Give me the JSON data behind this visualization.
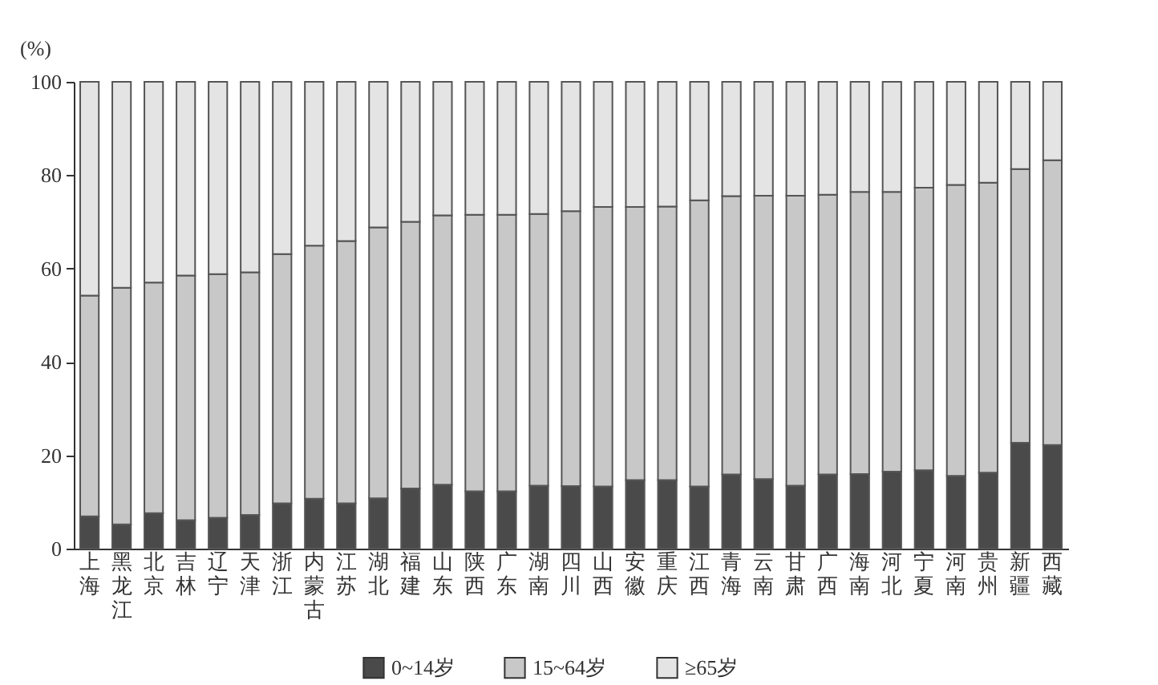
{
  "chart_data": {
    "type": "bar",
    "stacked": true,
    "ylabel": "(%)",
    "legend": "bottom",
    "grid": false,
    "categories": [
      "上海",
      "黑龙江",
      "北京",
      "吉林",
      "辽宁",
      "天津",
      "浙江",
      "内蒙古",
      "江苏",
      "湖北",
      "福建",
      "山东",
      "陕西",
      "广东",
      "湖南",
      "四川",
      "山西",
      "安徽",
      "重庆",
      "江西",
      "青海",
      "云南",
      "甘肃",
      "广西",
      "海南",
      "河北",
      "宁夏",
      "河南",
      "贵州",
      "新疆",
      "西藏"
    ],
    "ylim": [
      0,
      100
    ],
    "yticks": [
      0,
      20,
      40,
      60,
      80,
      100
    ],
    "series": [
      {
        "name": "0~14岁",
        "color": "#4a4a4a",
        "values": [
          6.9,
          5.2,
          7.6,
          6.1,
          6.6,
          7.2,
          9.7,
          10.7,
          9.7,
          10.8,
          12.9,
          13.7,
          12.3,
          12.3,
          13.5,
          13.4,
          13.3,
          14.7,
          14.7,
          13.3,
          15.9,
          14.9,
          13.5,
          15.9,
          16.0,
          16.5,
          16.8,
          15.6,
          16.3,
          22.7,
          22.2
        ]
      },
      {
        "name": "15~64岁",
        "color": "#c8c8c8",
        "values": [
          47.3,
          50.7,
          49.4,
          52.4,
          52.2,
          52.0,
          53.4,
          54.2,
          56.2,
          58.0,
          57.1,
          57.7,
          59.2,
          59.2,
          58.2,
          58.9,
          59.9,
          58.5,
          58.6,
          61.3,
          59.6,
          60.7,
          62.1,
          59.9,
          60.4,
          59.9,
          60.5,
          62.3,
          62.1,
          58.6,
          61.0
        ]
      },
      {
        "name": "≥65岁",
        "color": "#e4e4e4",
        "values": [
          45.8,
          44.1,
          43.0,
          41.5,
          41.2,
          40.8,
          36.9,
          35.1,
          34.1,
          31.2,
          30.0,
          28.6,
          28.5,
          28.5,
          28.3,
          27.7,
          26.8,
          26.8,
          26.7,
          25.4,
          24.5,
          24.4,
          24.4,
          24.2,
          23.6,
          23.6,
          22.7,
          22.1,
          21.6,
          18.7,
          16.8
        ]
      }
    ]
  }
}
